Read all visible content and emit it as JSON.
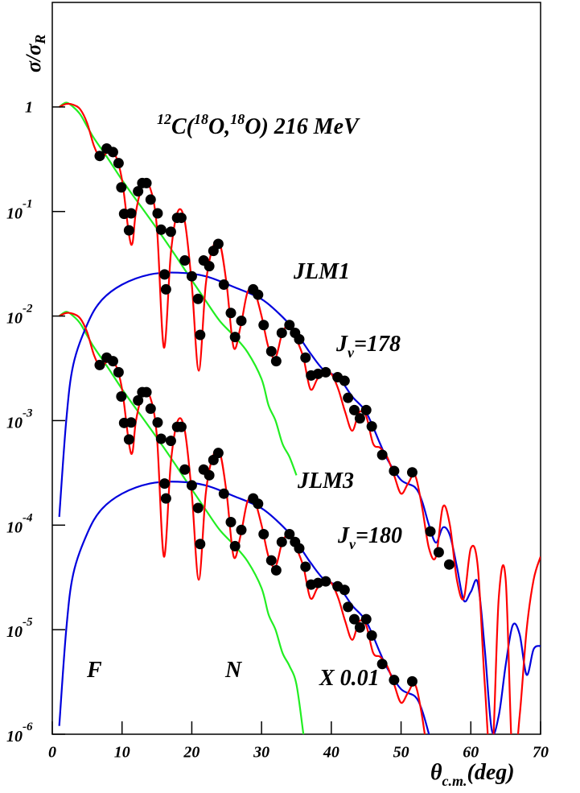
{
  "chart_data": {
    "type": "line",
    "title": [
      "12",
      "C(",
      "18",
      "O,",
      "18",
      "O) 216 MeV"
    ],
    "y_label": [
      "σ/σ",
      "R"
    ],
    "x_label": [
      "θ",
      "c.m.",
      "(deg)"
    ],
    "annotations": [
      [
        "JLM1"
      ],
      [
        "J",
        "v",
        "=178"
      ],
      [
        "JLM3"
      ],
      [
        "J",
        "v",
        "=180"
      ],
      [
        "F"
      ],
      [
        "N"
      ],
      [
        "X 0.01"
      ]
    ],
    "xlim": [
      0,
      70
    ],
    "xticks": [
      0,
      10,
      20,
      30,
      40,
      50,
      60,
      70
    ],
    "ylim": [
      1e-06,
      10
    ],
    "log_y": true,
    "yticks": [
      {
        "value": 1e-06,
        "label": "10",
        "exponent": "-6"
      },
      {
        "value": 1e-05,
        "label": "10",
        "exponent": "-5"
      },
      {
        "value": 0.0001,
        "label": "10",
        "exponent": "-4"
      },
      {
        "value": 0.001,
        "label": "10",
        "exponent": "-3"
      },
      {
        "value": 0.01,
        "label": "10",
        "exponent": "-2"
      },
      {
        "value": 0.1,
        "label": "10",
        "exponent": "-1"
      },
      1
    ],
    "series": [
      {
        "style": "line",
        "color": "#22ee22",
        "x": [
          1,
          2,
          3,
          4,
          5,
          6,
          8,
          10,
          12,
          14,
          16,
          18,
          20,
          22,
          24,
          26,
          28,
          30,
          31,
          32,
          33,
          34,
          35
        ],
        "values": [
          1.0,
          1.1,
          1.0,
          0.85,
          0.65,
          0.5,
          0.32,
          0.2,
          0.13,
          0.085,
          0.055,
          0.035,
          0.022,
          0.014,
          0.009,
          0.0065,
          0.0045,
          0.0025,
          0.0014,
          0.001,
          0.0006,
          0.00045,
          0.0003
        ]
      },
      {
        "style": "line",
        "color": "#22ee22",
        "x": [
          1,
          2,
          3,
          4,
          5,
          6,
          8,
          10,
          12,
          14,
          16,
          18,
          20,
          22,
          24,
          26,
          28,
          30,
          31,
          32,
          33,
          34,
          35,
          36
        ],
        "values": [
          0.01,
          0.011,
          0.01,
          0.0085,
          0.0065,
          0.005,
          0.0032,
          0.002,
          0.0013,
          0.00085,
          0.00055,
          0.00035,
          0.00022,
          0.00014,
          9e-05,
          6.5e-05,
          4.5e-05,
          2.5e-05,
          1.4e-05,
          1e-05,
          6e-06,
          4.5e-06,
          3e-06,
          1e-06
        ]
      },
      {
        "style": "line",
        "color": "#0000dd",
        "x": [
          1,
          2,
          3,
          5,
          7,
          10,
          14,
          18,
          22,
          26,
          30,
          33,
          35,
          37,
          39,
          41,
          43,
          45,
          47,
          48,
          50,
          52,
          53,
          54,
          55,
          56,
          57,
          58,
          59,
          60,
          61,
          62,
          63,
          64,
          65,
          66,
          67,
          68,
          69,
          70
        ],
        "values": [
          0.00012,
          0.001,
          0.0034,
          0.0083,
          0.014,
          0.02,
          0.025,
          0.026,
          0.024,
          0.019,
          0.0145,
          0.0098,
          0.0069,
          0.0044,
          0.003,
          0.0026,
          0.0017,
          0.0012,
          0.0006,
          0.00043,
          0.00027,
          0.00023,
          0.00017,
          0.0001,
          6.8e-05,
          9.5e-05,
          8e-05,
          4e-05,
          1.9e-05,
          2.3e-05,
          2.8e-05,
          6.5e-06,
          1.1e-06,
          1.5e-06,
          4.6e-06,
          1.1e-05,
          9e-06,
          3.7e-06,
          6.5e-06,
          7e-06
        ]
      },
      {
        "style": "line",
        "color": "#0000dd",
        "x": [
          1,
          2,
          3,
          5,
          7,
          10,
          14,
          18,
          22,
          26,
          30,
          33,
          35,
          37,
          39,
          41,
          43,
          45,
          47,
          48,
          50,
          52,
          53,
          54
        ],
        "values": [
          1.2e-06,
          1e-05,
          3.4e-05,
          8.3e-05,
          0.00014,
          0.0002,
          0.00025,
          0.00026,
          0.00024,
          0.00019,
          0.000145,
          9.8e-05,
          6.9e-05,
          4.4e-05,
          3e-05,
          2.6e-05,
          1.7e-05,
          1.2e-05,
          6e-06,
          4.3e-06,
          2.7e-06,
          2.3e-06,
          1.7e-06,
          1e-06
        ]
      },
      {
        "style": "line",
        "color": "#ff0000",
        "x": [
          1,
          2,
          3,
          4,
          5,
          6,
          7,
          8,
          9,
          10,
          11,
          11.5,
          12,
          13,
          14,
          15,
          16,
          17,
          18,
          19,
          20,
          21,
          22,
          23,
          24,
          25,
          26,
          27,
          28,
          29,
          30,
          31,
          32,
          33,
          34,
          35,
          36,
          37,
          38,
          39,
          40,
          41,
          42,
          43,
          44,
          45,
          46,
          47,
          48,
          49,
          50,
          51,
          52,
          53,
          54,
          55,
          56,
          57,
          58,
          59,
          60,
          61,
          62,
          63,
          64,
          65,
          66,
          67,
          68,
          69,
          70
        ],
        "values": [
          1.0,
          1.07,
          1.05,
          0.95,
          0.7,
          0.42,
          0.32,
          0.38,
          0.35,
          0.2,
          0.06,
          0.05,
          0.1,
          0.18,
          0.17,
          0.07,
          0.005,
          0.04,
          0.1,
          0.08,
          0.02,
          0.003,
          0.02,
          0.045,
          0.05,
          0.02,
          0.005,
          0.008,
          0.017,
          0.017,
          0.01,
          0.005,
          0.004,
          0.007,
          0.008,
          0.006,
          0.004,
          0.002,
          0.0025,
          0.003,
          0.0028,
          0.002,
          0.0012,
          0.0008,
          0.0012,
          0.0011,
          0.0006,
          0.00055,
          0.00045,
          0.0003,
          0.0002,
          0.00025,
          0.0003,
          0.00015,
          6e-05,
          5e-05,
          0.00015,
          0.0001,
          3e-05,
          2e-05,
          6e-05,
          4e-05,
          3e-06,
          5e-07,
          2e-05,
          3e-05,
          5e-07,
          1.5e-06,
          1e-05,
          3e-05,
          5e-05
        ]
      },
      {
        "style": "line",
        "color": "#ff0000",
        "x": [
          1,
          2,
          3,
          4,
          5,
          6,
          7,
          8,
          9,
          10,
          11,
          11.5,
          12,
          13,
          14,
          15,
          16,
          17,
          18,
          19,
          20,
          21,
          22,
          23,
          24,
          25,
          26,
          27,
          28,
          29,
          30,
          31,
          32,
          33,
          34,
          35,
          36,
          37,
          38,
          39,
          40,
          41,
          42,
          43,
          44,
          45,
          46,
          47,
          48,
          49,
          50,
          51,
          52,
          53,
          54
        ],
        "values": [
          0.01,
          0.0107,
          0.0105,
          0.0095,
          0.007,
          0.0042,
          0.0032,
          0.0038,
          0.0035,
          0.002,
          0.0006,
          0.0005,
          0.001,
          0.0018,
          0.0017,
          0.0007,
          5e-05,
          0.0004,
          0.001,
          0.0008,
          0.0002,
          3e-05,
          0.0002,
          0.00045,
          0.0005,
          0.0002,
          5e-05,
          8e-05,
          0.00017,
          0.00017,
          0.0001,
          5e-05,
          4e-05,
          7e-05,
          8e-05,
          6e-05,
          4e-05,
          2e-05,
          2.5e-05,
          3e-05,
          2.8e-05,
          2e-05,
          1.2e-05,
          8e-06,
          1.2e-05,
          1.1e-05,
          6e-06,
          5.5e-06,
          4.5e-06,
          3e-06,
          2e-06,
          2.5e-06,
          3e-06,
          1.5e-06,
          5e-07
        ]
      },
      {
        "style": "markers",
        "color": "#000000",
        "x": [
          6.8,
          7.8,
          8.7,
          9.5,
          9.9,
          10.3,
          11.0,
          11.3,
          12.3,
          12.9,
          13.5,
          14.1,
          15.1,
          15.6,
          16.1,
          16.3,
          17.0,
          17.9,
          18.5,
          19.0,
          20.0,
          20.9,
          21.2,
          21.7,
          22.5,
          23.1,
          23.8,
          24.6,
          25.6,
          26.2,
          27.1,
          28.8,
          29.5,
          30.3,
          31.4,
          32.1,
          32.9,
          34.0,
          34.8,
          35.4,
          36.3,
          37.1,
          38.1,
          39.2,
          40.9,
          41.9,
          42.4,
          43.3,
          44.1,
          45.0,
          45.8,
          47.3,
          49.0,
          51.6,
          54.2,
          55.4,
          56.9
        ],
        "values": [
          0.34,
          0.4,
          0.37,
          0.29,
          0.17,
          0.095,
          0.066,
          0.096,
          0.156,
          0.187,
          0.187,
          0.13,
          0.096,
          0.067,
          0.025,
          0.018,
          0.064,
          0.087,
          0.087,
          0.034,
          0.024,
          0.0146,
          0.0066,
          0.034,
          0.03,
          0.042,
          0.049,
          0.02,
          0.0107,
          0.0063,
          0.009,
          0.018,
          0.016,
          0.0082,
          0.0046,
          0.0037,
          0.0069,
          0.0082,
          0.0069,
          0.006,
          0.004,
          0.0027,
          0.0028,
          0.0029,
          0.0026,
          0.0024,
          0.00165,
          0.00126,
          0.00105,
          0.00126,
          0.00088,
          0.00047,
          0.00033,
          0.00032,
          8.7e-05,
          5.5e-05,
          4.2e-05
        ]
      },
      {
        "style": "markers",
        "color": "#000000",
        "x": [
          6.8,
          7.8,
          8.7,
          9.5,
          9.9,
          10.3,
          11.0,
          11.3,
          12.3,
          12.9,
          13.5,
          14.1,
          15.1,
          15.6,
          16.1,
          16.3,
          17.0,
          17.9,
          18.5,
          19.0,
          20.0,
          20.9,
          21.2,
          21.7,
          22.5,
          23.1,
          23.8,
          24.6,
          25.6,
          26.2,
          27.1,
          28.8,
          29.5,
          30.3,
          31.4,
          32.1,
          32.9,
          34.0,
          34.8,
          35.4,
          36.3,
          37.1,
          38.1,
          39.2,
          40.9,
          41.9,
          42.4,
          43.3,
          44.1,
          45.0,
          45.8,
          47.3,
          49.0,
          51.6
        ],
        "values": [
          0.0034,
          0.004,
          0.0037,
          0.0029,
          0.0017,
          0.00095,
          0.00066,
          0.00096,
          0.00156,
          0.00187,
          0.00187,
          0.0013,
          0.00096,
          0.00067,
          0.00025,
          0.00018,
          0.00064,
          0.00087,
          0.00087,
          0.00034,
          0.00024,
          0.000146,
          6.6e-05,
          0.00034,
          0.0003,
          0.00042,
          0.00049,
          0.0002,
          0.000107,
          6.3e-05,
          9e-05,
          0.00018,
          0.00016,
          8.2e-05,
          4.6e-05,
          3.7e-05,
          6.9e-05,
          8.2e-05,
          6.9e-05,
          6e-05,
          4e-05,
          2.7e-05,
          2.8e-05,
          2.9e-05,
          2.6e-05,
          2.4e-05,
          1.65e-05,
          1.26e-05,
          1.05e-05,
          1.26e-05,
          8.8e-06,
          4.7e-06,
          3.3e-06,
          3.2e-06
        ]
      }
    ]
  }
}
